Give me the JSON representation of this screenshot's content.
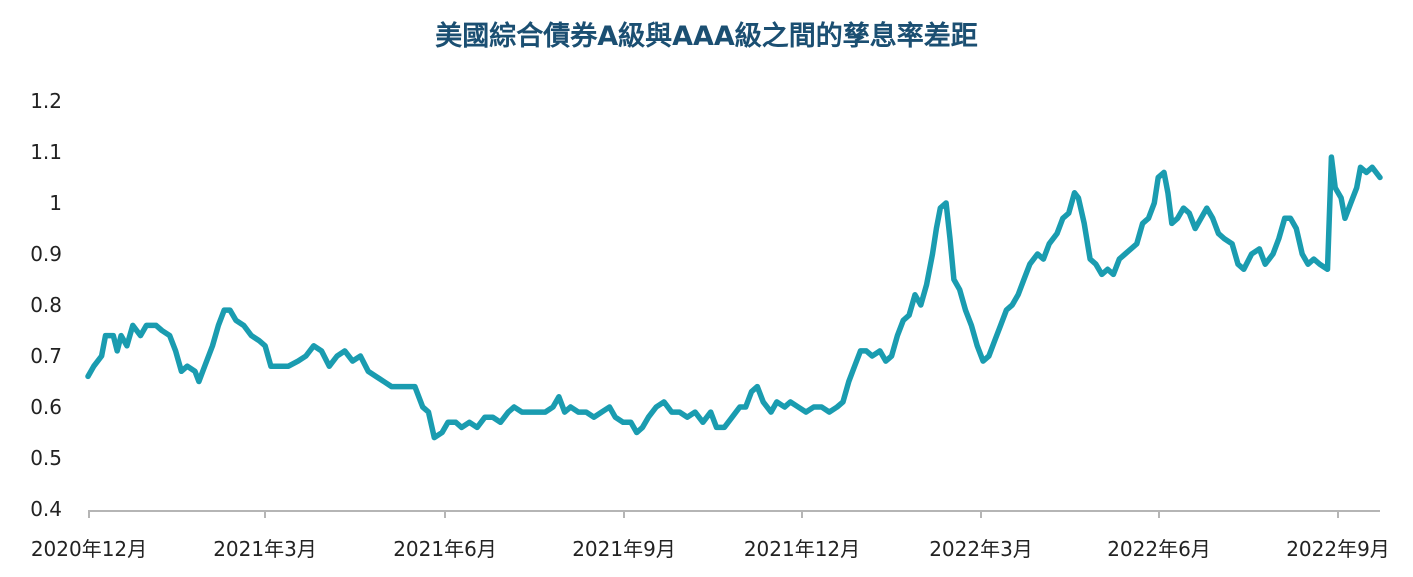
{
  "chart_data": {
    "type": "line",
    "title": "美國綜合債券A級與AAA級之間的孳息率差距",
    "xlabel": "",
    "ylabel": "",
    "ylim": [
      0.4,
      1.2
    ],
    "y_ticks": [
      "0.4",
      "0.5",
      "0.6",
      "0.7",
      "0.8",
      "0.9",
      "1",
      "1.1",
      "1.2"
    ],
    "x_ticks": [
      "2020年12月",
      "2021年3月",
      "2021年6月",
      "2021年9月",
      "2021年12月",
      "2022年3月",
      "2022年6月",
      "2022年9月"
    ],
    "grid": false,
    "legend": "none",
    "line_color": "#1a9cb0",
    "x_start": "2020-12-01",
    "x_end": "2022-09-26",
    "series": [
      {
        "points": [
          [
            "2020-12-01",
            0.66
          ],
          [
            "2020-12-04",
            0.68
          ],
          [
            "2020-12-08",
            0.7
          ],
          [
            "2020-12-10",
            0.74
          ],
          [
            "2020-12-14",
            0.74
          ],
          [
            "2020-12-16",
            0.71
          ],
          [
            "2020-12-18",
            0.74
          ],
          [
            "2020-12-21",
            0.72
          ],
          [
            "2020-12-24",
            0.76
          ],
          [
            "2020-12-28",
            0.74
          ],
          [
            "2020-12-31",
            0.76
          ],
          [
            "2021-01-05",
            0.76
          ],
          [
            "2021-01-08",
            0.75
          ],
          [
            "2021-01-12",
            0.74
          ],
          [
            "2021-01-15",
            0.71
          ],
          [
            "2021-01-18",
            0.67
          ],
          [
            "2021-01-21",
            0.68
          ],
          [
            "2021-01-25",
            0.67
          ],
          [
            "2021-01-27",
            0.65
          ],
          [
            "2021-01-30",
            0.68
          ],
          [
            "2021-02-03",
            0.72
          ],
          [
            "2021-02-06",
            0.76
          ],
          [
            "2021-02-09",
            0.79
          ],
          [
            "2021-02-12",
            0.79
          ],
          [
            "2021-02-15",
            0.77
          ],
          [
            "2021-02-19",
            0.76
          ],
          [
            "2021-02-23",
            0.74
          ],
          [
            "2021-02-27",
            0.73
          ],
          [
            "2021-03-02",
            0.72
          ],
          [
            "2021-03-05",
            0.68
          ],
          [
            "2021-03-10",
            0.68
          ],
          [
            "2021-03-14",
            0.68
          ],
          [
            "2021-03-19",
            0.69
          ],
          [
            "2021-03-23",
            0.7
          ],
          [
            "2021-03-27",
            0.72
          ],
          [
            "2021-03-31",
            0.71
          ],
          [
            "2021-04-04",
            0.68
          ],
          [
            "2021-04-08",
            0.7
          ],
          [
            "2021-04-12",
            0.71
          ],
          [
            "2021-04-16",
            0.69
          ],
          [
            "2021-04-20",
            0.7
          ],
          [
            "2021-04-24",
            0.67
          ],
          [
            "2021-04-28",
            0.66
          ],
          [
            "2021-05-02",
            0.65
          ],
          [
            "2021-05-06",
            0.64
          ],
          [
            "2021-05-12",
            0.64
          ],
          [
            "2021-05-18",
            0.64
          ],
          [
            "2021-05-22",
            0.6
          ],
          [
            "2021-05-25",
            0.59
          ],
          [
            "2021-05-28",
            0.54
          ],
          [
            "2021-06-01",
            0.55
          ],
          [
            "2021-06-04",
            0.57
          ],
          [
            "2021-06-08",
            0.57
          ],
          [
            "2021-06-11",
            0.56
          ],
          [
            "2021-06-15",
            0.57
          ],
          [
            "2021-06-19",
            0.56
          ],
          [
            "2021-06-23",
            0.58
          ],
          [
            "2021-06-27",
            0.58
          ],
          [
            "2021-07-01",
            0.57
          ],
          [
            "2021-07-05",
            0.59
          ],
          [
            "2021-07-08",
            0.6
          ],
          [
            "2021-07-12",
            0.59
          ],
          [
            "2021-07-16",
            0.59
          ],
          [
            "2021-07-20",
            0.59
          ],
          [
            "2021-07-24",
            0.59
          ],
          [
            "2021-07-28",
            0.6
          ],
          [
            "2021-07-31",
            0.62
          ],
          [
            "2021-08-03",
            0.59
          ],
          [
            "2021-08-06",
            0.6
          ],
          [
            "2021-08-10",
            0.59
          ],
          [
            "2021-08-14",
            0.59
          ],
          [
            "2021-08-18",
            0.58
          ],
          [
            "2021-08-22",
            0.59
          ],
          [
            "2021-08-26",
            0.6
          ],
          [
            "2021-08-29",
            0.58
          ],
          [
            "2021-09-02",
            0.57
          ],
          [
            "2021-09-06",
            0.57
          ],
          [
            "2021-09-09",
            0.55
          ],
          [
            "2021-09-12",
            0.56
          ],
          [
            "2021-09-15",
            0.58
          ],
          [
            "2021-09-19",
            0.6
          ],
          [
            "2021-09-23",
            0.61
          ],
          [
            "2021-09-27",
            0.59
          ],
          [
            "2021-10-01",
            0.59
          ],
          [
            "2021-10-05",
            0.58
          ],
          [
            "2021-10-09",
            0.59
          ],
          [
            "2021-10-13",
            0.57
          ],
          [
            "2021-10-17",
            0.59
          ],
          [
            "2021-10-20",
            0.56
          ],
          [
            "2021-10-24",
            0.56
          ],
          [
            "2021-10-28",
            0.58
          ],
          [
            "2021-11-01",
            0.6
          ],
          [
            "2021-11-04",
            0.6
          ],
          [
            "2021-11-07",
            0.63
          ],
          [
            "2021-11-10",
            0.64
          ],
          [
            "2021-11-13",
            0.61
          ],
          [
            "2021-11-17",
            0.59
          ],
          [
            "2021-11-20",
            0.61
          ],
          [
            "2021-11-24",
            0.6
          ],
          [
            "2021-11-27",
            0.61
          ],
          [
            "2021-12-01",
            0.6
          ],
          [
            "2021-12-05",
            0.59
          ],
          [
            "2021-12-09",
            0.6
          ],
          [
            "2021-12-13",
            0.6
          ],
          [
            "2021-12-17",
            0.59
          ],
          [
            "2021-12-21",
            0.6
          ],
          [
            "2021-12-24",
            0.61
          ],
          [
            "2021-12-27",
            0.65
          ],
          [
            "2021-12-30",
            0.68
          ],
          [
            "2022-01-02",
            0.71
          ],
          [
            "2022-01-05",
            0.71
          ],
          [
            "2022-01-08",
            0.7
          ],
          [
            "2022-01-12",
            0.71
          ],
          [
            "2022-01-15",
            0.69
          ],
          [
            "2022-01-18",
            0.7
          ],
          [
            "2022-01-21",
            0.74
          ],
          [
            "2022-01-24",
            0.77
          ],
          [
            "2022-01-27",
            0.78
          ],
          [
            "2022-01-30",
            0.82
          ],
          [
            "2022-02-02",
            0.8
          ],
          [
            "2022-02-05",
            0.84
          ],
          [
            "2022-02-08",
            0.9
          ],
          [
            "2022-02-10",
            0.95
          ],
          [
            "2022-02-12",
            0.99
          ],
          [
            "2022-02-15",
            1.0
          ],
          [
            "2022-02-17",
            0.93
          ],
          [
            "2022-02-19",
            0.85
          ],
          [
            "2022-02-22",
            0.83
          ],
          [
            "2022-02-25",
            0.79
          ],
          [
            "2022-02-28",
            0.76
          ],
          [
            "2022-03-03",
            0.72
          ],
          [
            "2022-03-06",
            0.69
          ],
          [
            "2022-03-09",
            0.7
          ],
          [
            "2022-03-12",
            0.73
          ],
          [
            "2022-03-15",
            0.76
          ],
          [
            "2022-03-18",
            0.79
          ],
          [
            "2022-03-21",
            0.8
          ],
          [
            "2022-03-24",
            0.82
          ],
          [
            "2022-03-27",
            0.85
          ],
          [
            "2022-03-30",
            0.88
          ],
          [
            "2022-04-03",
            0.9
          ],
          [
            "2022-04-06",
            0.89
          ],
          [
            "2022-04-09",
            0.92
          ],
          [
            "2022-04-13",
            0.94
          ],
          [
            "2022-04-16",
            0.97
          ],
          [
            "2022-04-19",
            0.98
          ],
          [
            "2022-04-22",
            1.02
          ],
          [
            "2022-04-24",
            1.01
          ],
          [
            "2022-04-27",
            0.96
          ],
          [
            "2022-04-30",
            0.89
          ],
          [
            "2022-05-03",
            0.88
          ],
          [
            "2022-05-06",
            0.86
          ],
          [
            "2022-05-09",
            0.87
          ],
          [
            "2022-05-12",
            0.86
          ],
          [
            "2022-05-15",
            0.89
          ],
          [
            "2022-05-18",
            0.9
          ],
          [
            "2022-05-21",
            0.91
          ],
          [
            "2022-05-24",
            0.92
          ],
          [
            "2022-05-27",
            0.96
          ],
          [
            "2022-05-30",
            0.97
          ],
          [
            "2022-06-02",
            1.0
          ],
          [
            "2022-06-04",
            1.05
          ],
          [
            "2022-06-07",
            1.06
          ],
          [
            "2022-06-09",
            1.02
          ],
          [
            "2022-06-11",
            0.96
          ],
          [
            "2022-06-14",
            0.97
          ],
          [
            "2022-06-17",
            0.99
          ],
          [
            "2022-06-20",
            0.98
          ],
          [
            "2022-06-23",
            0.95
          ],
          [
            "2022-06-26",
            0.97
          ],
          [
            "2022-06-29",
            0.99
          ],
          [
            "2022-07-02",
            0.97
          ],
          [
            "2022-07-05",
            0.94
          ],
          [
            "2022-07-08",
            0.93
          ],
          [
            "2022-07-12",
            0.92
          ],
          [
            "2022-07-15",
            0.88
          ],
          [
            "2022-07-18",
            0.87
          ],
          [
            "2022-07-22",
            0.9
          ],
          [
            "2022-07-26",
            0.91
          ],
          [
            "2022-07-29",
            0.88
          ],
          [
            "2022-08-02",
            0.9
          ],
          [
            "2022-08-05",
            0.93
          ],
          [
            "2022-08-08",
            0.97
          ],
          [
            "2022-08-11",
            0.97
          ],
          [
            "2022-08-14",
            0.95
          ],
          [
            "2022-08-17",
            0.9
          ],
          [
            "2022-08-20",
            0.88
          ],
          [
            "2022-08-23",
            0.89
          ],
          [
            "2022-08-26",
            0.88
          ],
          [
            "2022-08-30",
            0.87
          ],
          [
            "2022-09-01",
            1.09
          ],
          [
            "2022-09-03",
            1.03
          ],
          [
            "2022-09-06",
            1.01
          ],
          [
            "2022-09-08",
            0.97
          ],
          [
            "2022-09-11",
            1.0
          ],
          [
            "2022-09-14",
            1.03
          ],
          [
            "2022-09-16",
            1.07
          ],
          [
            "2022-09-19",
            1.06
          ],
          [
            "2022-09-22",
            1.07
          ],
          [
            "2022-09-26",
            1.05
          ]
        ]
      }
    ]
  }
}
